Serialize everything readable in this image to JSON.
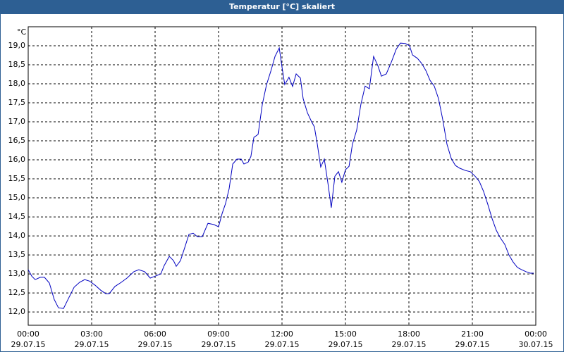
{
  "chart_data": {
    "type": "line",
    "title": "Temperatur [°C] skaliert",
    "y_label": "°C",
    "xlim": [
      0,
      24
    ],
    "xticks": [
      {
        "value": 0,
        "label": "00:00"
      },
      {
        "value": 3,
        "label": "03:00"
      },
      {
        "value": 6,
        "label": "06:00"
      },
      {
        "value": 9,
        "label": "09:00"
      },
      {
        "value": 12,
        "label": "12:00"
      },
      {
        "value": 15,
        "label": "15:00"
      },
      {
        "value": 18,
        "label": "18:00"
      },
      {
        "value": 21,
        "label": "21:00"
      },
      {
        "value": 24,
        "label": "00:00"
      }
    ],
    "xtick_dates": [
      "29.07.15",
      "29.07.15",
      "29.07.15",
      "29.07.15",
      "29.07.15",
      "29.07.15",
      "29.07.15",
      "29.07.15",
      "30.07.15"
    ],
    "ylim": [
      11.65,
      19.5
    ],
    "yticks": [
      {
        "value": 12,
        "label": "12,0"
      },
      {
        "value": 12.5,
        "label": "12,5"
      },
      {
        "value": 13,
        "label": "13,0"
      },
      {
        "value": 13.5,
        "label": "13,5"
      },
      {
        "value": 14,
        "label": "14,0"
      },
      {
        "value": 14.5,
        "label": "14,5"
      },
      {
        "value": 15,
        "label": "15,0"
      },
      {
        "value": 15.5,
        "label": "15,5"
      },
      {
        "value": 16,
        "label": "16,0"
      },
      {
        "value": 16.5,
        "label": "16,5"
      },
      {
        "value": 17,
        "label": "17,0"
      },
      {
        "value": 17.5,
        "label": "17,5"
      },
      {
        "value": 18,
        "label": "18,0"
      },
      {
        "value": 18.5,
        "label": "18,5"
      },
      {
        "value": 19,
        "label": "19,0"
      }
    ],
    "grid": true,
    "color": "#0000c0",
    "x": [
      0,
      0.17,
      0.33,
      0.57,
      0.77,
      1.0,
      1.23,
      1.43,
      1.67,
      1.9,
      2.17,
      2.43,
      2.67,
      2.9,
      3.17,
      3.43,
      3.67,
      3.83,
      4.1,
      4.4,
      4.67,
      5.0,
      5.23,
      5.5,
      5.77,
      6.0,
      6.27,
      6.43,
      6.67,
      6.87,
      7.0,
      7.2,
      7.4,
      7.6,
      7.8,
      8.0,
      8.23,
      8.5,
      8.77,
      9.0,
      9.17,
      9.33,
      9.5,
      9.67,
      9.87,
      10.07,
      10.2,
      10.4,
      10.53,
      10.67,
      10.87,
      11.07,
      11.27,
      11.47,
      11.67,
      11.87,
      12.0,
      12.13,
      12.33,
      12.5,
      12.67,
      12.87,
      13.0,
      13.2,
      13.4,
      13.53,
      13.67,
      13.83,
      14.0,
      14.17,
      14.33,
      14.5,
      14.67,
      14.83,
      15.0,
      15.17,
      15.33,
      15.53,
      15.73,
      15.93,
      16.13,
      16.33,
      16.53,
      16.7,
      16.93,
      17.17,
      17.4,
      17.6,
      17.83,
      18.03,
      18.17,
      18.4,
      18.6,
      18.8,
      19.0,
      19.2,
      19.4,
      19.6,
      19.8,
      20.0,
      20.2,
      20.4,
      20.67,
      20.9,
      21.13,
      21.33,
      21.53,
      21.73,
      21.93,
      22.13,
      22.33,
      22.53,
      22.73,
      22.93,
      23.13,
      23.33,
      23.53,
      23.73,
      23.9
    ],
    "values": [
      13.11,
      12.94,
      12.85,
      12.91,
      12.91,
      12.76,
      12.33,
      12.11,
      12.09,
      12.35,
      12.65,
      12.78,
      12.85,
      12.81,
      12.7,
      12.57,
      12.48,
      12.48,
      12.67,
      12.78,
      12.89,
      13.06,
      13.11,
      13.06,
      12.89,
      12.94,
      13.0,
      13.22,
      13.46,
      13.35,
      13.2,
      13.35,
      13.69,
      14.04,
      14.07,
      13.98,
      13.98,
      14.33,
      14.3,
      14.24,
      14.59,
      14.85,
      15.24,
      15.89,
      16.02,
      16.02,
      15.89,
      15.94,
      16.09,
      16.59,
      16.67,
      17.46,
      17.98,
      18.33,
      18.72,
      18.94,
      18.44,
      17.98,
      18.17,
      17.93,
      18.26,
      18.15,
      17.61,
      17.24,
      17.0,
      16.87,
      16.41,
      15.81,
      16.02,
      15.39,
      14.74,
      15.57,
      15.69,
      15.41,
      15.74,
      15.83,
      16.41,
      16.78,
      17.46,
      17.94,
      17.87,
      18.72,
      18.48,
      18.2,
      18.26,
      18.57,
      18.91,
      19.07,
      19.06,
      19.0,
      18.76,
      18.67,
      18.54,
      18.35,
      18.09,
      17.94,
      17.61,
      17.06,
      16.41,
      16.04,
      15.85,
      15.78,
      15.72,
      15.69,
      15.57,
      15.43,
      15.17,
      14.83,
      14.46,
      14.15,
      13.94,
      13.78,
      13.5,
      13.31,
      13.17,
      13.11,
      13.06,
      13.02,
      13.02
    ]
  }
}
